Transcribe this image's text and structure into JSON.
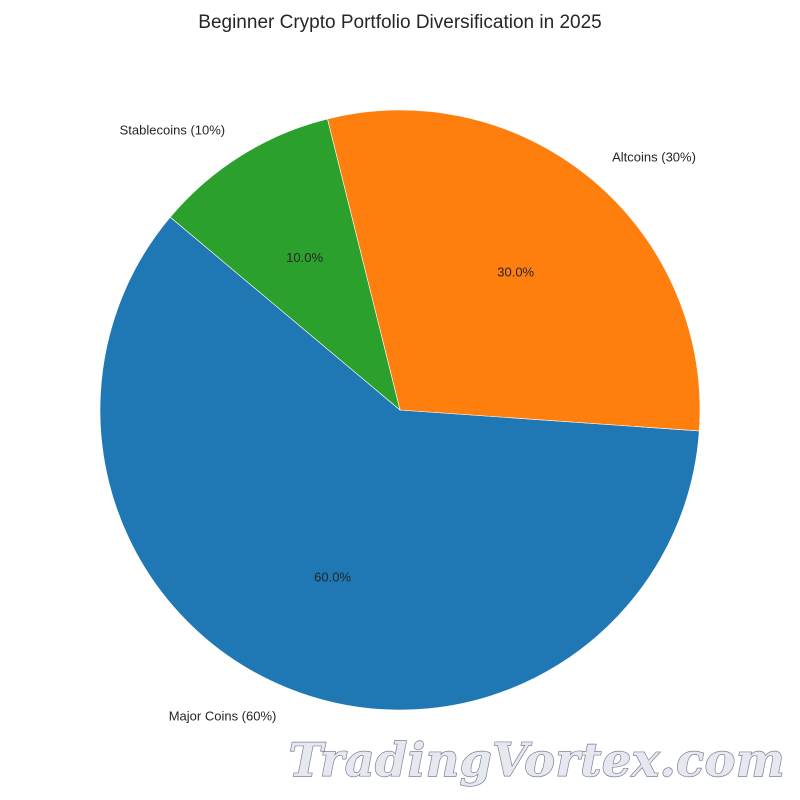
{
  "chart_data": {
    "type": "pie",
    "title": "Beginner Crypto Portfolio Diversification in 2025",
    "slices": [
      {
        "label": "Major Coins (60%)",
        "value": 60,
        "percent_label": "60.0%",
        "color": "#1f77b4"
      },
      {
        "label": "Altcoins (30%)",
        "value": 30,
        "percent_label": "30.0%",
        "color": "#ff7f0e"
      },
      {
        "label": "Stablecoins (10%)",
        "value": 10,
        "percent_label": "10.0%",
        "color": "#2ca02c"
      }
    ],
    "start_angle_deg": 140,
    "direction": "counterclockwise"
  },
  "watermark": {
    "text": "TradingVortex.com"
  }
}
